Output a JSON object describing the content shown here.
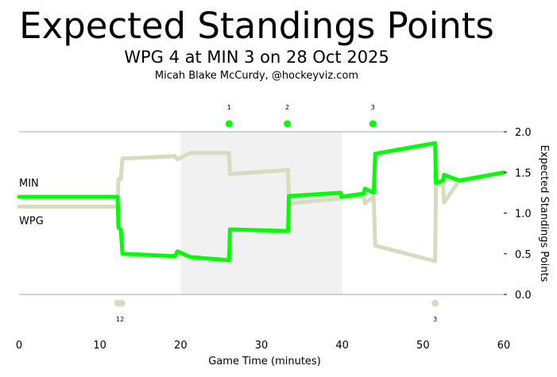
{
  "chart_data": {
    "type": "line",
    "title": "Expected Standings Points",
    "subtitle": "WPG 4 at MIN 3 on 28 Oct 2025",
    "credit": "Micah Blake McCurdy, @hockeyviz.com",
    "xlabel": "Game Time (minutes)",
    "ylabel": "Expected Standings Points",
    "xlim": [
      0,
      60
    ],
    "ylim": [
      -0.3,
      2.3
    ],
    "x_ticks": [
      0,
      10,
      20,
      30,
      40,
      50,
      60
    ],
    "y_ticks": [
      0.0,
      0.5,
      1.0,
      1.5,
      2.0
    ],
    "y_tick_labels": [
      "0.0",
      "0.5",
      "1.0",
      "1.5",
      "2.0"
    ],
    "reference_lines": [
      0.0,
      2.0
    ],
    "shaded_period": [
      20,
      40
    ],
    "series": [
      {
        "name": "MIN",
        "color": "#00ff00",
        "points": [
          [
            0,
            1.2
          ],
          [
            12.2,
            1.2
          ],
          [
            12.3,
            0.82
          ],
          [
            12.6,
            0.8
          ],
          [
            12.8,
            0.5
          ],
          [
            19.3,
            0.47
          ],
          [
            19.6,
            0.53
          ],
          [
            21.2,
            0.46
          ],
          [
            26.0,
            0.42
          ],
          [
            26.1,
            0.8
          ],
          [
            33.3,
            0.78
          ],
          [
            33.4,
            1.21
          ],
          [
            39.8,
            1.25
          ],
          [
            39.9,
            1.2
          ],
          [
            42.7,
            1.24
          ],
          [
            42.8,
            1.3
          ],
          [
            43.9,
            1.25
          ],
          [
            44.1,
            1.73
          ],
          [
            51.5,
            1.86
          ],
          [
            51.6,
            1.37
          ],
          [
            52.5,
            1.4
          ],
          [
            52.6,
            1.47
          ],
          [
            54.5,
            1.4
          ],
          [
            60,
            1.5
          ]
        ]
      },
      {
        "name": "WPG",
        "color": "#d8dcbe",
        "points": [
          [
            0,
            1.08
          ],
          [
            12.2,
            1.08
          ],
          [
            12.3,
            1.42
          ],
          [
            12.6,
            1.42
          ],
          [
            12.8,
            1.67
          ],
          [
            19.3,
            1.7
          ],
          [
            19.6,
            1.66
          ],
          [
            21.2,
            1.74
          ],
          [
            26.0,
            1.74
          ],
          [
            26.1,
            1.48
          ],
          [
            33.3,
            1.53
          ],
          [
            33.4,
            1.12
          ],
          [
            39.8,
            1.18
          ],
          [
            39.9,
            1.2
          ],
          [
            42.7,
            1.2
          ],
          [
            42.8,
            1.12
          ],
          [
            43.9,
            1.2
          ],
          [
            44.1,
            0.6
          ],
          [
            51.5,
            0.41
          ],
          [
            51.6,
            1.35
          ],
          [
            52.5,
            1.35
          ],
          [
            52.6,
            1.13
          ],
          [
            54.5,
            1.4
          ],
          [
            60,
            1.5
          ]
        ]
      }
    ],
    "goals_top": {
      "color": "#00ff00",
      "events": [
        {
          "x": 26.0,
          "label": "1"
        },
        {
          "x": 33.2,
          "label": "2"
        },
        {
          "x": 43.8,
          "label": "3"
        }
      ]
    },
    "goals_bottom": {
      "color": "#d8dcbe",
      "events": [
        {
          "x": 12.2,
          "label": ""
        },
        {
          "x": 12.7,
          "label": ""
        },
        {
          "x": 51.5,
          "label": "3"
        }
      ],
      "combined_label": {
        "x": 12.5,
        "label": "12"
      }
    }
  }
}
